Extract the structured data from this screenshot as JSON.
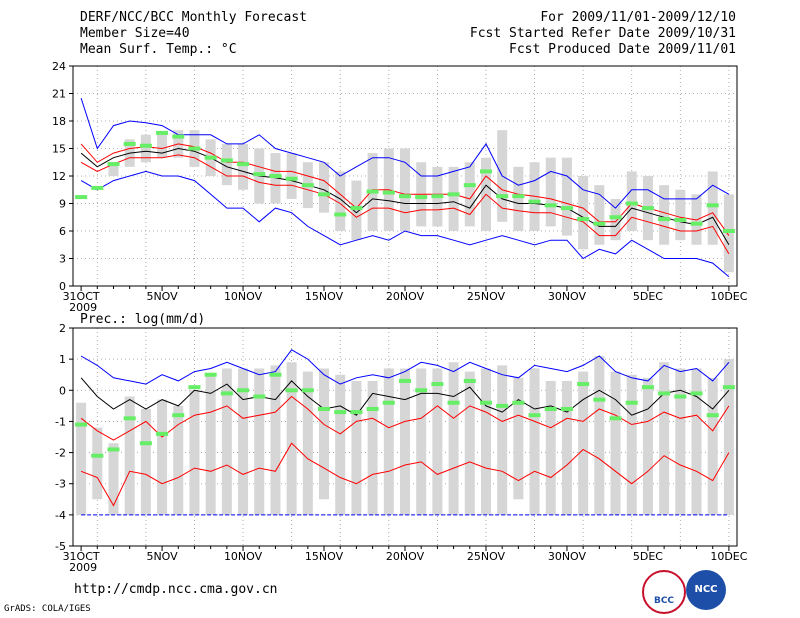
{
  "header": {
    "title": "DERF/NCC/BCC Monthly Forecast",
    "member_size": "Member Size=40",
    "variable": "Mean Surf. Temp.: °C",
    "period": "For 2009/11/01-2009/12/10",
    "started": "Fcst Started Refer Date 2009/10/31",
    "produced": "Fcst Produced Date 2009/11/01"
  },
  "footer": {
    "url": "http://cmdp.ncc.cma.gov.cn",
    "credit": "GrADS: COLA/IGES",
    "logo_bcc": "BCC",
    "logo_ncc": "NCC"
  },
  "colors": {
    "max": "#0000ff",
    "spread": "#ff0000",
    "mean": "#000000",
    "obs": "#66ee66",
    "box": "#d6d6d6"
  },
  "chart_data": [
    {
      "type": "line",
      "title": "Mean Surf. Temp.: °C",
      "ylim": [
        0,
        24
      ],
      "yticks": [
        0,
        3,
        6,
        9,
        12,
        15,
        18,
        21,
        24
      ],
      "xlabels": [
        "31OCT",
        "5NOV",
        "10NOV",
        "15NOV",
        "20NOV",
        "25NOV",
        "30NOV",
        "5DEC",
        "10DEC"
      ],
      "xlabel_sub": "2009",
      "days": [
        0,
        1,
        2,
        3,
        4,
        5,
        6,
        7,
        8,
        9,
        10,
        11,
        12,
        13,
        14,
        15,
        16,
        17,
        18,
        19,
        20,
        21,
        22,
        23,
        24,
        25,
        26,
        27,
        28,
        29,
        30,
        31,
        32,
        33,
        34,
        35,
        36,
        37,
        38,
        39,
        40
      ],
      "box_top": [
        null,
        null,
        13.5,
        16.0,
        16.5,
        16.5,
        17.0,
        17.0,
        16.0,
        15.5,
        15.5,
        15.0,
        14.5,
        14.5,
        13.5,
        13.5,
        12.5,
        11.5,
        14.5,
        15.0,
        15.0,
        13.5,
        13.0,
        13.0,
        13.5,
        14.0,
        17.0,
        13.0,
        13.5,
        14.0,
        14.0,
        12.0,
        11.0,
        9.5,
        12.5,
        12.0,
        11.0,
        10.5,
        10.0,
        12.5,
        10.0
      ],
      "box_bottom": [
        null,
        null,
        12.0,
        13.0,
        13.5,
        14.0,
        14.0,
        13.0,
        12.0,
        11.0,
        10.5,
        9.0,
        9.0,
        9.5,
        8.5,
        8.0,
        6.0,
        5.0,
        6.0,
        6.0,
        6.0,
        6.5,
        6.5,
        6.0,
        6.5,
        6.0,
        7.0,
        6.0,
        6.0,
        6.5,
        5.5,
        4.0,
        4.5,
        5.0,
        6.0,
        5.0,
        4.5,
        5.0,
        4.5,
        4.5,
        1.5
      ],
      "obs": [
        9.7,
        10.7,
        13.3,
        15.5,
        15.3,
        16.7,
        16.3,
        15.0,
        14.0,
        13.7,
        13.3,
        12.2,
        12.0,
        11.7,
        11.0,
        10.0,
        7.8,
        8.5,
        10.3,
        10.2,
        9.8,
        9.7,
        9.8,
        10.0,
        11.0,
        12.5,
        9.8,
        9.8,
        9.2,
        8.8,
        8.5,
        7.3,
        6.8,
        7.5,
        9.0,
        8.5,
        7.3,
        7.2,
        6.8,
        8.8,
        6.0
      ],
      "series": [
        {
          "name": "max",
          "color": "#0000ff",
          "values": [
            20.5,
            15.0,
            17.5,
            18.0,
            17.8,
            17.5,
            16.5,
            16.5,
            16.5,
            15.5,
            15.5,
            16.5,
            15.0,
            14.5,
            14.0,
            13.5,
            12.0,
            13.0,
            14.0,
            14.0,
            13.5,
            12.0,
            12.0,
            12.5,
            13.0,
            15.5,
            12.0,
            11.0,
            11.5,
            12.5,
            12.0,
            10.5,
            10.0,
            8.5,
            10.5,
            10.5,
            9.5,
            9.5,
            9.5,
            11.0,
            10.0
          ]
        },
        {
          "name": "upper",
          "color": "#ff0000",
          "values": [
            15.5,
            13.5,
            14.5,
            15.0,
            15.2,
            15.0,
            15.5,
            15.2,
            14.5,
            13.5,
            13.5,
            13.0,
            12.5,
            12.5,
            12.0,
            11.5,
            10.0,
            8.5,
            10.5,
            10.5,
            10.0,
            10.0,
            10.0,
            10.0,
            9.5,
            12.0,
            10.5,
            10.0,
            9.8,
            9.5,
            9.0,
            8.5,
            7.0,
            7.0,
            9.0,
            8.5,
            8.0,
            7.5,
            7.2,
            8.0,
            5.5
          ]
        },
        {
          "name": "mean",
          "color": "#000000",
          "values": [
            14.5,
            13.0,
            14.0,
            14.5,
            14.7,
            14.5,
            15.0,
            14.7,
            14.0,
            13.0,
            12.5,
            12.0,
            11.8,
            11.5,
            11.0,
            10.5,
            9.5,
            8.0,
            9.5,
            9.3,
            9.0,
            9.0,
            9.0,
            9.2,
            8.5,
            11.0,
            9.5,
            9.0,
            9.0,
            8.8,
            8.5,
            7.5,
            6.5,
            6.5,
            8.5,
            8.0,
            7.5,
            7.0,
            6.7,
            7.5,
            4.5
          ]
        },
        {
          "name": "lower",
          "color": "#ff0000",
          "values": [
            13.5,
            12.5,
            13.3,
            14.0,
            14.0,
            14.0,
            14.3,
            14.0,
            13.0,
            12.0,
            12.0,
            11.3,
            11.0,
            11.0,
            10.5,
            10.0,
            9.0,
            7.5,
            8.5,
            8.5,
            8.0,
            8.3,
            8.3,
            8.5,
            7.8,
            10.0,
            8.5,
            8.2,
            8.0,
            8.0,
            7.5,
            7.0,
            5.5,
            5.5,
            7.5,
            7.0,
            6.5,
            6.0,
            6.0,
            6.5,
            3.5
          ]
        },
        {
          "name": "min",
          "color": "#0000ff",
          "values": [
            11.5,
            10.5,
            11.5,
            12.0,
            12.5,
            12.0,
            12.0,
            11.5,
            10.0,
            8.5,
            8.5,
            7.0,
            8.5,
            8.0,
            6.5,
            5.5,
            4.5,
            5.0,
            5.5,
            5.0,
            6.0,
            5.5,
            5.5,
            5.0,
            4.5,
            5.0,
            5.5,
            5.0,
            4.5,
            5.0,
            5.0,
            3.0,
            4.0,
            3.5,
            5.0,
            4.0,
            3.0,
            3.0,
            3.0,
            2.5,
            1.0
          ]
        }
      ]
    },
    {
      "type": "line",
      "title": "Prec.: log(mm/d)",
      "ylim": [
        -5,
        2
      ],
      "yticks": [
        -5,
        -4,
        -3,
        -2,
        -1,
        0,
        1,
        2
      ],
      "xlabels": [
        "31OCT",
        "5NOV",
        "10NOV",
        "15NOV",
        "20NOV",
        "25NOV",
        "30NOV",
        "5DEC",
        "10DEC"
      ],
      "xlabel_sub": "2009",
      "days": [
        0,
        1,
        2,
        3,
        4,
        5,
        6,
        7,
        8,
        9,
        10,
        11,
        12,
        13,
        14,
        15,
        16,
        17,
        18,
        19,
        20,
        21,
        22,
        23,
        24,
        25,
        26,
        27,
        28,
        29,
        30,
        31,
        32,
        33,
        34,
        35,
        36,
        37,
        38,
        39,
        40
      ],
      "box_top": [
        -0.4,
        -1.2,
        -1.7,
        -0.2,
        -0.6,
        -0.3,
        -0.5,
        0.0,
        0.5,
        0.7,
        0.7,
        0.7,
        0.8,
        0.9,
        0.6,
        0.7,
        0.5,
        0.3,
        0.3,
        0.7,
        0.7,
        0.7,
        0.7,
        0.9,
        0.6,
        0.7,
        0.8,
        0.4,
        0.7,
        0.3,
        0.3,
        0.6,
        1.1,
        0.6,
        0.5,
        0.4,
        0.9,
        0.7,
        0.7,
        0.4,
        1.0
      ],
      "box_bottom": [
        -4.0,
        -3.5,
        -4.0,
        -4.0,
        -4.0,
        -4.0,
        -4.0,
        -4.0,
        -4.0,
        -4.0,
        -4.0,
        -4.0,
        -4.0,
        -4.0,
        -4.0,
        -3.5,
        -4.0,
        -4.0,
        -4.0,
        -4.0,
        -4.0,
        -4.0,
        -4.0,
        -4.0,
        -4.0,
        -4.0,
        -4.0,
        -3.5,
        -4.0,
        -4.0,
        -4.0,
        -4.0,
        -4.0,
        -4.0,
        -4.0,
        -4.0,
        -4.0,
        -4.0,
        -4.0,
        -4.0,
        -4.0
      ],
      "obs": [
        -1.1,
        -2.1,
        -1.9,
        -0.9,
        -1.7,
        -1.4,
        -0.8,
        0.1,
        0.5,
        -0.1,
        0.0,
        -0.2,
        0.5,
        0.0,
        0.0,
        -0.6,
        -0.7,
        -0.7,
        -0.6,
        -0.4,
        0.3,
        0.0,
        0.2,
        -0.4,
        0.3,
        -0.4,
        -0.5,
        -0.4,
        -0.8,
        -0.6,
        -0.6,
        0.2,
        -0.3,
        -0.9,
        -0.4,
        0.1,
        -0.1,
        -0.2,
        -0.1,
        -0.8,
        0.1
      ],
      "series": [
        {
          "name": "max",
          "color": "#0000ff",
          "values": [
            1.1,
            0.8,
            0.4,
            0.3,
            0.2,
            0.5,
            0.3,
            0.6,
            0.7,
            0.9,
            0.7,
            0.5,
            0.6,
            1.3,
            1.0,
            0.5,
            0.2,
            0.4,
            0.5,
            0.4,
            0.6,
            0.9,
            0.8,
            0.6,
            0.9,
            0.7,
            0.5,
            0.4,
            0.8,
            0.7,
            0.6,
            0.8,
            1.1,
            0.6,
            0.4,
            0.3,
            0.8,
            0.6,
            0.7,
            0.3,
            0.9
          ]
        },
        {
          "name": "upper",
          "color": "#000000",
          "values": [
            0.4,
            -0.2,
            -0.6,
            -0.3,
            -0.6,
            -0.3,
            -0.5,
            0.0,
            -0.1,
            0.2,
            -0.3,
            -0.2,
            -0.3,
            0.3,
            -0.2,
            -0.6,
            -0.5,
            -0.8,
            -0.1,
            -0.2,
            -0.3,
            -0.1,
            -0.1,
            -0.2,
            0.1,
            -0.5,
            -0.7,
            -0.3,
            -0.6,
            -0.5,
            -0.7,
            -0.3,
            0.0,
            -0.3,
            -0.8,
            -0.6,
            -0.1,
            0.0,
            -0.2,
            -0.6,
            0.0
          ]
        },
        {
          "name": "mean",
          "color": "#ff0000",
          "values": [
            -0.9,
            -1.3,
            -1.6,
            -1.3,
            -1.0,
            -1.5,
            -1.1,
            -0.8,
            -0.7,
            -0.5,
            -0.9,
            -0.8,
            -0.7,
            -0.2,
            -0.6,
            -1.1,
            -1.4,
            -1.0,
            -0.9,
            -1.2,
            -1.0,
            -0.9,
            -0.5,
            -0.9,
            -0.5,
            -0.7,
            -1.0,
            -0.8,
            -1.0,
            -1.2,
            -0.9,
            -1.0,
            -0.6,
            -0.8,
            -1.1,
            -1.0,
            -0.7,
            -0.9,
            -0.8,
            -1.3,
            -0.5
          ]
        },
        {
          "name": "min",
          "color": "#ff0000",
          "values": [
            -2.6,
            -2.8,
            -3.7,
            -2.6,
            -2.7,
            -3.0,
            -2.8,
            -2.5,
            -2.6,
            -2.4,
            -2.7,
            -2.5,
            -2.6,
            -1.7,
            -2.2,
            -2.5,
            -2.8,
            -3.0,
            -2.7,
            -2.6,
            -2.4,
            -2.3,
            -2.7,
            -2.5,
            -2.3,
            -2.5,
            -2.6,
            -2.9,
            -2.6,
            -2.8,
            -2.4,
            -1.9,
            -2.2,
            -2.6,
            -3.0,
            -2.6,
            -2.1,
            -2.4,
            -2.6,
            -2.9,
            -2.0
          ]
        },
        {
          "name": "floor",
          "color": "#0000ff",
          "values": [
            -4.0,
            -4.0,
            -4.0,
            -4.0,
            -4.0,
            -4.0,
            -4.0,
            -4.0,
            -4.0,
            -4.0,
            -4.0,
            -4.0,
            -4.0,
            -4.0,
            -4.0,
            -4.0,
            -4.0,
            -4.0,
            -4.0,
            -4.0,
            -4.0,
            -4.0,
            -4.0,
            -4.0,
            -4.0,
            -4.0,
            -4.0,
            -4.0,
            -4.0,
            -4.0,
            -4.0,
            -4.0,
            -4.0,
            -4.0,
            -4.0,
            -4.0,
            -4.0,
            -4.0,
            -4.0,
            -4.0,
            -4.0
          ]
        }
      ]
    }
  ]
}
